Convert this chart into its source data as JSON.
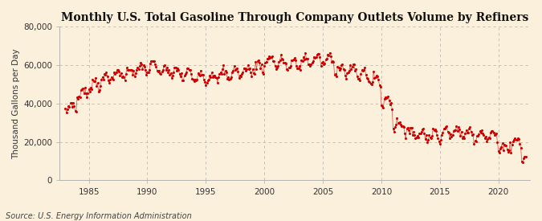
{
  "title": "Monthly U.S. Total Gasoline Through Company Outlets Volume by Refiners",
  "ylabel": "Thousand Gallons per Day",
  "source": "Source: U.S. Energy Information Administration",
  "line_color": "#CC0000",
  "background_color": "#FAF0DC",
  "grid_color": "#BBBBBB",
  "xlim": [
    1982.5,
    2022.7
  ],
  "ylim": [
    0,
    80000
  ],
  "yticks": [
    0,
    20000,
    40000,
    60000,
    80000
  ],
  "xticks": [
    1985,
    1990,
    1995,
    2000,
    2005,
    2010,
    2015,
    2020
  ],
  "title_fontsize": 10,
  "label_fontsize": 7.5,
  "source_fontsize": 7,
  "year_means": {
    "1983": 38000,
    "1984": 45000,
    "1985": 50000,
    "1986": 53000,
    "1987": 55000,
    "1988": 56500,
    "1989": 58000,
    "1990": 59000,
    "1991": 57000,
    "1992": 56000,
    "1993": 55000,
    "1994": 54500,
    "1995": 53500,
    "1996": 55000,
    "1997": 56000,
    "1998": 57000,
    "1999": 59000,
    "2000": 62500,
    "2001": 61000,
    "2002": 60000,
    "2003": 62000,
    "2004": 63000,
    "2005": 62500,
    "2006": 58000,
    "2007": 57000,
    "2008": 55000,
    "2009": 52000,
    "2010": 41000,
    "2011": 29000,
    "2012": 25000,
    "2013": 24000,
    "2014": 23500,
    "2015": 25000,
    "2016": 25000,
    "2017": 24500,
    "2018": 24000,
    "2019": 23000,
    "2020": 17000,
    "2021": 20000,
    "2022": 12000
  },
  "noise_std": 1200,
  "seasonal_amp": 2500
}
